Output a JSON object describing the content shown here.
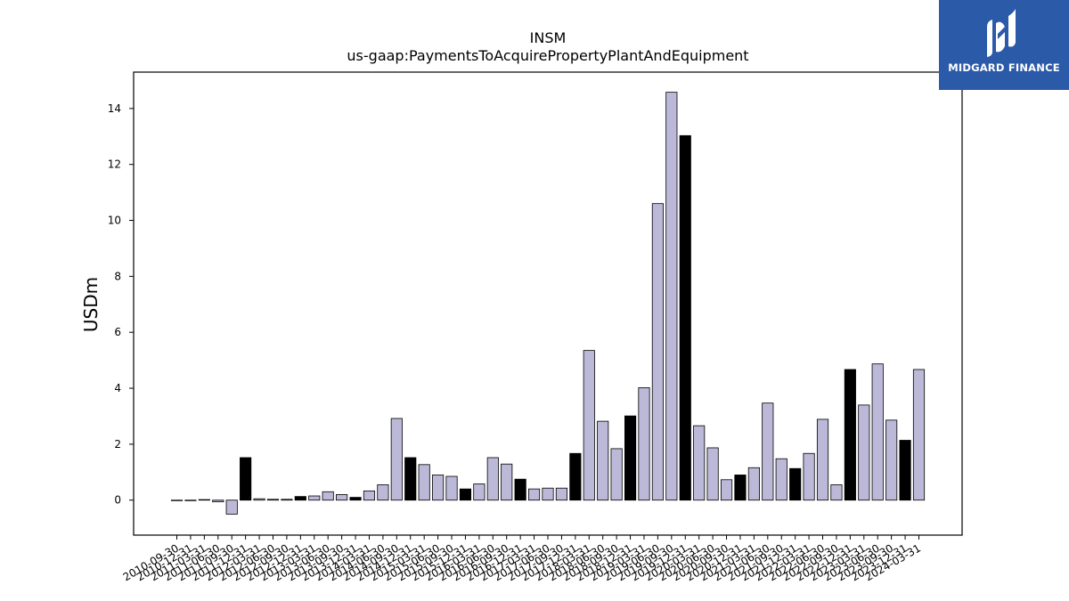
{
  "chart_data": {
    "type": "bar",
    "title": "INSM",
    "subtitle": "us-gaap:PaymentsToAcquirePropertyPlantAndEquipment",
    "ylabel": "USDm",
    "xlabel": "",
    "ylim": [
      -1.25,
      15.3
    ],
    "yticks": [
      0,
      2,
      4,
      6,
      8,
      10,
      12,
      14
    ],
    "grid": false,
    "colors": {
      "quarter": "#bcb8d8",
      "annual": "#000000",
      "edge": "#000000"
    },
    "categories": [
      "2010-09-30",
      "2010-12-31",
      "2011-03-31",
      "2011-06-30",
      "2011-09-30",
      "2011-12-31",
      "2012-03-31",
      "2012-06-30",
      "2012-09-30",
      "2012-12-31",
      "2013-03-31",
      "2013-06-30",
      "2013-09-30",
      "2013-12-31",
      "2014-03-31",
      "2014-06-30",
      "2014-09-30",
      "2014-12-31",
      "2015-03-31",
      "2015-06-30",
      "2015-09-30",
      "2015-12-31",
      "2016-03-31",
      "2016-06-30",
      "2016-09-30",
      "2016-12-31",
      "2017-03-31",
      "2017-06-30",
      "2017-09-30",
      "2017-12-31",
      "2018-03-31",
      "2018-06-30",
      "2018-09-30",
      "2018-12-31",
      "2019-03-31",
      "2019-06-30",
      "2019-09-30",
      "2019-12-31",
      "2020-03-31",
      "2020-06-30",
      "2020-09-30",
      "2020-12-31",
      "2021-03-31",
      "2021-06-30",
      "2021-09-30",
      "2021-12-31",
      "2022-03-31",
      "2022-06-30",
      "2022-09-30",
      "2022-12-31",
      "2023-03-31",
      "2023-06-30",
      "2023-09-30",
      "2023-12-31",
      "2024-03-31"
    ],
    "values": [
      -0.01,
      -0.01,
      0.02,
      -0.06,
      -0.5,
      1.52,
      0.05,
      0.03,
      0.03,
      0.13,
      0.15,
      0.3,
      0.2,
      0.1,
      0.33,
      0.55,
      2.92,
      1.52,
      1.27,
      0.9,
      0.85,
      0.4,
      0.58,
      1.52,
      1.29,
      0.75,
      0.4,
      0.43,
      0.43,
      1.67,
      5.35,
      2.82,
      1.84,
      3.01,
      4.02,
      10.6,
      14.58,
      13.03,
      2.66,
      1.87,
      0.73,
      0.9,
      1.16,
      3.47,
      1.48,
      1.13,
      1.67,
      2.89,
      0.55,
      4.67,
      3.4,
      4.87,
      2.86,
      2.14,
      4.67
    ],
    "annual": [
      false,
      false,
      false,
      false,
      false,
      true,
      false,
      false,
      false,
      true,
      false,
      false,
      false,
      true,
      false,
      false,
      false,
      true,
      false,
      false,
      false,
      true,
      false,
      false,
      false,
      true,
      false,
      false,
      false,
      true,
      false,
      false,
      false,
      true,
      false,
      false,
      false,
      true,
      false,
      false,
      false,
      true,
      false,
      false,
      false,
      true,
      false,
      false,
      false,
      true,
      false,
      false,
      false,
      true,
      false
    ]
  },
  "logo": {
    "text": "MIDGARD FINANCE",
    "name": "midgard-finance-logo"
  }
}
